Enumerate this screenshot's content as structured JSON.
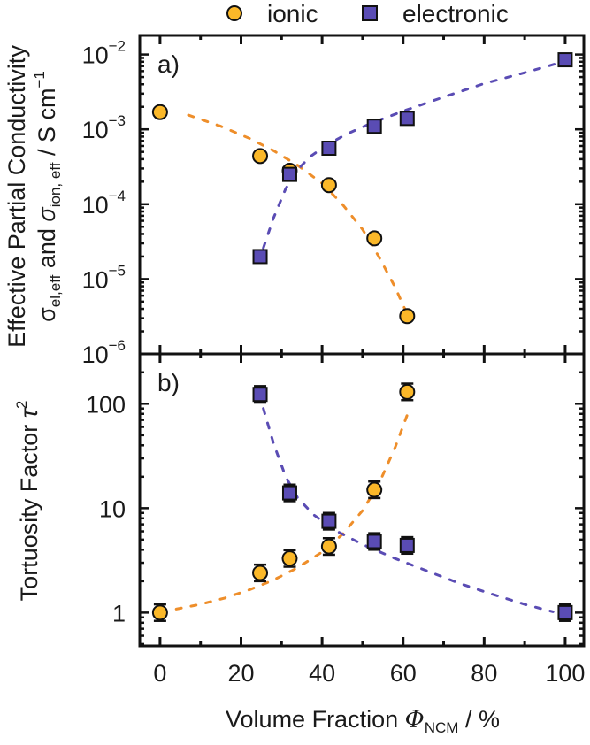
{
  "chart_data": [
    {
      "id": "a",
      "type": "scatter",
      "panel_label": "a)",
      "yscale": "log",
      "ylim": [
        1e-06,
        0.018
      ],
      "xlim": [
        -5,
        104.6
      ],
      "ylabel_line1": "Effective Partial Conductivity",
      "ylabel_line2": "σel,eff and σion, eff / S cm−1",
      "ylabel_parts": {
        "sigma_el": "σ",
        "el_sub": "el,eff",
        "and": " and ",
        "sigma_ion": "σ",
        "ion_sub": "ion, eff",
        "unit": " / S cm",
        "unit_sup": "−1"
      },
      "yticks": [
        {
          "value": 0.01,
          "base": "10",
          "exp": "−2"
        },
        {
          "value": 0.001,
          "base": "10",
          "exp": "−3"
        },
        {
          "value": 0.0001,
          "base": "10",
          "exp": "−4"
        },
        {
          "value": 1e-05,
          "base": "10",
          "exp": "−5"
        },
        {
          "value": 1e-06,
          "base": "10",
          "exp": "−6"
        }
      ],
      "series": [
        {
          "name": "ionic",
          "marker": "circle",
          "x": [
            0,
            24.7,
            32,
            41.7,
            52.9,
            61
          ],
          "y": [
            0.0017,
            0.00044,
            0.00028,
            0.00018,
            3.5e-05,
            3.2e-06
          ],
          "fit": {
            "x": [
              7,
              15,
              22,
              28,
              34,
              40,
              45,
              50,
              54,
              58,
              61
            ],
            "y": [
              0.00155,
              0.0011,
              0.00076,
              0.00052,
              0.00033,
              0.00019,
              0.0001,
              4.6e-05,
              2e-05,
              7.8e-06,
              3.4e-06
            ]
          }
        },
        {
          "name": "electronic",
          "marker": "square",
          "x": [
            24.7,
            32,
            41.7,
            52.9,
            61,
            100
          ],
          "y": [
            2e-05,
            0.00025,
            0.00056,
            0.0011,
            0.0014,
            0.0085
          ],
          "fit": {
            "x": [
              25.5,
              28,
              31,
              34,
              37,
              41,
              46,
              52,
              60,
              70,
              80,
              90,
              98
            ],
            "y": [
              2.6e-05,
              6.5e-05,
              0.00016,
              0.00029,
              0.00043,
              0.00061,
              0.00086,
              0.0012,
              0.00175,
              0.0027,
              0.0041,
              0.0057,
              0.0076
            ]
          }
        }
      ]
    },
    {
      "id": "b",
      "type": "scatter",
      "panel_label": "b)",
      "yscale": "log",
      "ylim": [
        0.48,
        300
      ],
      "xlim": [
        -5,
        104.6
      ],
      "ylabel": "Tortuosity Factor τ²",
      "ylabel_parts": {
        "text": "Tortuosity Factor ",
        "tau": "τ",
        "sup": "2"
      },
      "yticks": [
        {
          "value": 100,
          "label": "100"
        },
        {
          "value": 10,
          "label": "10"
        },
        {
          "value": 1,
          "label": "1"
        }
      ],
      "xticks": [
        {
          "value": 0,
          "label": "0"
        },
        {
          "value": 20,
          "label": "20"
        },
        {
          "value": 40,
          "label": "40"
        },
        {
          "value": 60,
          "label": "60"
        },
        {
          "value": 80,
          "label": "80"
        },
        {
          "value": 100,
          "label": "100"
        }
      ],
      "xlabel": "Volume Fraction ΦNCM / %",
      "xlabel_parts": {
        "text": "Volume Fraction ",
        "phi": "Φ",
        "sub": "NCM",
        "unit": " / %"
      },
      "series": [
        {
          "name": "ionic",
          "marker": "circle",
          "x": [
            0,
            24.7,
            32,
            41.7,
            52.9,
            61
          ],
          "y": [
            1.0,
            2.4,
            3.3,
            4.3,
            15,
            130
          ],
          "yerr_factor": 1.2,
          "fit": {
            "x": [
              4,
              10,
              16,
              22,
              28,
              34,
              40,
              45,
              50,
              54,
              58,
              61
            ],
            "y": [
              1.08,
              1.2,
              1.38,
              1.65,
              2.05,
              2.7,
              3.8,
              5.6,
              9.5,
              17,
              38,
              78
            ]
          }
        },
        {
          "name": "electronic",
          "marker": "square",
          "x": [
            24.7,
            32,
            41.7,
            52.9,
            61,
            100
          ],
          "y": [
            123,
            14,
            7.5,
            4.8,
            4.4,
            1.0
          ],
          "yerr_factor": 1.2,
          "fit": {
            "x": [
              25.5,
              28,
              31,
              34,
              38,
              43,
              50,
              58,
              66,
              74,
              82,
              90,
              97
            ],
            "y": [
              90,
              42,
              20,
              12.5,
              8.6,
              6.2,
              4.5,
              3.3,
              2.5,
              1.9,
              1.5,
              1.2,
              1.02
            ]
          }
        }
      ]
    }
  ],
  "legend": {
    "placement": "top-center",
    "items": [
      {
        "label": "ionic",
        "marker": "circle",
        "color": "#FBB829"
      },
      {
        "label": "electronic",
        "marker": "square",
        "color": "#5A4CB4"
      }
    ]
  },
  "colors": {
    "ionic_marker": "#FBB829",
    "ionic_fit": "#EE8E2A",
    "electronic_marker": "#5A4CB4",
    "electronic_fit": "#5A4CB4",
    "axis": "#111111"
  }
}
